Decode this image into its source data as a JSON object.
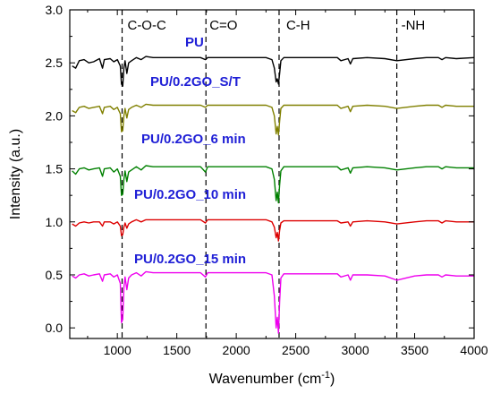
{
  "chart_data": {
    "type": "line",
    "xlabel": "Wavenumber (cm",
    "xlabel_sup": "-1",
    "xlabel_end": ")",
    "ylabel": "Intensity (a.u.)",
    "xlim": [
      600,
      4000
    ],
    "ylim": [
      -0.1,
      3.0
    ],
    "xticks": [
      "1000",
      "1500",
      "2000",
      "2500",
      "3000",
      "3500",
      "4000"
    ],
    "yticks": [
      "0.0",
      "0.5",
      "1.0",
      "1.5",
      "2.0",
      "2.5",
      "3.0"
    ],
    "reference_lines": [
      {
        "x": 1040,
        "label": "C-O-C"
      },
      {
        "x": 1745,
        "label": "C=O"
      },
      {
        "x": 2360,
        "label": "C-H"
      },
      {
        "x": 3350,
        "label": "-NH"
      }
    ],
    "series": [
      {
        "name": "PU",
        "color": "#000000",
        "points": [
          [
            620,
            2.47
          ],
          [
            650,
            2.45
          ],
          [
            680,
            2.52
          ],
          [
            720,
            2.53
          ],
          [
            760,
            2.5
          ],
          [
            800,
            2.51
          ],
          [
            850,
            2.54
          ],
          [
            875,
            2.45
          ],
          [
            890,
            2.53
          ],
          [
            940,
            2.54
          ],
          [
            970,
            2.51
          ],
          [
            1000,
            2.53
          ],
          [
            1025,
            2.47
          ],
          [
            1035,
            2.3
          ],
          [
            1045,
            2.28
          ],
          [
            1055,
            2.45
          ],
          [
            1065,
            2.52
          ],
          [
            1080,
            2.4
          ],
          [
            1095,
            2.5
          ],
          [
            1120,
            2.52
          ],
          [
            1160,
            2.55
          ],
          [
            1200,
            2.53
          ],
          [
            1240,
            2.56
          ],
          [
            1300,
            2.55
          ],
          [
            1400,
            2.55
          ],
          [
            1500,
            2.55
          ],
          [
            1600,
            2.55
          ],
          [
            1700,
            2.55
          ],
          [
            1740,
            2.53
          ],
          [
            1760,
            2.55
          ],
          [
            1900,
            2.55
          ],
          [
            2100,
            2.55
          ],
          [
            2250,
            2.55
          ],
          [
            2300,
            2.53
          ],
          [
            2320,
            2.45
          ],
          [
            2335,
            2.32
          ],
          [
            2345,
            2.35
          ],
          [
            2355,
            2.3
          ],
          [
            2365,
            2.4
          ],
          [
            2375,
            2.52
          ],
          [
            2400,
            2.55
          ],
          [
            2600,
            2.55
          ],
          [
            2850,
            2.55
          ],
          [
            2880,
            2.52
          ],
          [
            2940,
            2.54
          ],
          [
            2960,
            2.49
          ],
          [
            2980,
            2.54
          ],
          [
            3100,
            2.55
          ],
          [
            3250,
            2.54
          ],
          [
            3350,
            2.52
          ],
          [
            3500,
            2.54
          ],
          [
            3600,
            2.55
          ],
          [
            3700,
            2.55
          ],
          [
            3730,
            2.53
          ],
          [
            3760,
            2.55
          ],
          [
            3850,
            2.54
          ],
          [
            4000,
            2.55
          ]
        ]
      },
      {
        "name": "PU/0.2GO_S/T",
        "color": "#808000",
        "points": [
          [
            620,
            2.05
          ],
          [
            650,
            2.03
          ],
          [
            680,
            2.08
          ],
          [
            720,
            2.09
          ],
          [
            760,
            2.07
          ],
          [
            800,
            2.08
          ],
          [
            850,
            2.09
          ],
          [
            875,
            2.02
          ],
          [
            890,
            2.08
          ],
          [
            940,
            2.09
          ],
          [
            970,
            2.06
          ],
          [
            1000,
            2.08
          ],
          [
            1025,
            2.02
          ],
          [
            1035,
            1.85
          ],
          [
            1045,
            1.86
          ],
          [
            1055,
            2.0
          ],
          [
            1065,
            2.07
          ],
          [
            1080,
            1.98
          ],
          [
            1095,
            2.06
          ],
          [
            1120,
            2.08
          ],
          [
            1160,
            2.1
          ],
          [
            1200,
            2.08
          ],
          [
            1240,
            2.11
          ],
          [
            1300,
            2.1
          ],
          [
            1400,
            2.1
          ],
          [
            1500,
            2.1
          ],
          [
            1600,
            2.1
          ],
          [
            1700,
            2.1
          ],
          [
            1740,
            2.08
          ],
          [
            1760,
            2.1
          ],
          [
            1900,
            2.1
          ],
          [
            2100,
            2.1
          ],
          [
            2250,
            2.1
          ],
          [
            2300,
            2.08
          ],
          [
            2320,
            2.0
          ],
          [
            2335,
            1.83
          ],
          [
            2345,
            1.9
          ],
          [
            2355,
            1.82
          ],
          [
            2365,
            1.95
          ],
          [
            2375,
            2.07
          ],
          [
            2400,
            2.1
          ],
          [
            2600,
            2.1
          ],
          [
            2850,
            2.1
          ],
          [
            2880,
            2.07
          ],
          [
            2940,
            2.09
          ],
          [
            2960,
            2.04
          ],
          [
            2980,
            2.09
          ],
          [
            3100,
            2.1
          ],
          [
            3250,
            2.09
          ],
          [
            3350,
            2.07
          ],
          [
            3500,
            2.09
          ],
          [
            3600,
            2.1
          ],
          [
            3700,
            2.1
          ],
          [
            3730,
            2.08
          ],
          [
            3760,
            2.1
          ],
          [
            3850,
            2.09
          ],
          [
            4000,
            2.09
          ]
        ]
      },
      {
        "name": "PU/0.2GO_6 min",
        "color": "#008000",
        "points": [
          [
            620,
            1.48
          ],
          [
            650,
            1.45
          ],
          [
            680,
            1.5
          ],
          [
            720,
            1.51
          ],
          [
            760,
            1.49
          ],
          [
            800,
            1.5
          ],
          [
            850,
            1.51
          ],
          [
            875,
            1.43
          ],
          [
            890,
            1.5
          ],
          [
            940,
            1.51
          ],
          [
            970,
            1.47
          ],
          [
            1000,
            1.5
          ],
          [
            1025,
            1.43
          ],
          [
            1035,
            1.25
          ],
          [
            1045,
            1.26
          ],
          [
            1055,
            1.4
          ],
          [
            1065,
            1.48
          ],
          [
            1080,
            1.38
          ],
          [
            1095,
            1.47
          ],
          [
            1120,
            1.49
          ],
          [
            1160,
            1.52
          ],
          [
            1200,
            1.49
          ],
          [
            1240,
            1.53
          ],
          [
            1300,
            1.52
          ],
          [
            1400,
            1.52
          ],
          [
            1500,
            1.52
          ],
          [
            1600,
            1.52
          ],
          [
            1700,
            1.52
          ],
          [
            1740,
            1.47
          ],
          [
            1760,
            1.52
          ],
          [
            1900,
            1.52
          ],
          [
            2100,
            1.52
          ],
          [
            2250,
            1.52
          ],
          [
            2300,
            1.5
          ],
          [
            2320,
            1.4
          ],
          [
            2335,
            1.2
          ],
          [
            2345,
            1.28
          ],
          [
            2355,
            1.18
          ],
          [
            2365,
            1.35
          ],
          [
            2375,
            1.48
          ],
          [
            2400,
            1.52
          ],
          [
            2600,
            1.52
          ],
          [
            2850,
            1.52
          ],
          [
            2880,
            1.49
          ],
          [
            2940,
            1.51
          ],
          [
            2960,
            1.46
          ],
          [
            2980,
            1.51
          ],
          [
            3100,
            1.52
          ],
          [
            3250,
            1.51
          ],
          [
            3350,
            1.49
          ],
          [
            3500,
            1.51
          ],
          [
            3600,
            1.52
          ],
          [
            3700,
            1.52
          ],
          [
            3730,
            1.5
          ],
          [
            3760,
            1.52
          ],
          [
            3850,
            1.51
          ],
          [
            4000,
            1.51
          ]
        ]
      },
      {
        "name": "PU/0.2GO_10 min",
        "color": "#dd0000",
        "points": [
          [
            620,
            0.98
          ],
          [
            650,
            0.96
          ],
          [
            680,
            0.99
          ],
          [
            720,
            1.0
          ],
          [
            760,
            0.99
          ],
          [
            800,
            1.0
          ],
          [
            850,
            1.0
          ],
          [
            875,
            0.96
          ],
          [
            890,
            1.0
          ],
          [
            940,
            1.0
          ],
          [
            970,
            0.98
          ],
          [
            1000,
            1.0
          ],
          [
            1025,
            0.96
          ],
          [
            1035,
            0.87
          ],
          [
            1045,
            0.88
          ],
          [
            1055,
            0.95
          ],
          [
            1065,
            0.99
          ],
          [
            1080,
            0.94
          ],
          [
            1095,
            0.98
          ],
          [
            1120,
            1.0
          ],
          [
            1160,
            1.02
          ],
          [
            1200,
            1.0
          ],
          [
            1240,
            1.02
          ],
          [
            1300,
            1.02
          ],
          [
            1400,
            1.02
          ],
          [
            1500,
            1.02
          ],
          [
            1600,
            1.02
          ],
          [
            1700,
            1.02
          ],
          [
            1740,
            0.99
          ],
          [
            1760,
            1.02
          ],
          [
            1900,
            1.02
          ],
          [
            2100,
            1.02
          ],
          [
            2250,
            1.02
          ],
          [
            2300,
            1.0
          ],
          [
            2320,
            0.95
          ],
          [
            2335,
            0.85
          ],
          [
            2345,
            0.9
          ],
          [
            2355,
            0.82
          ],
          [
            2365,
            0.92
          ],
          [
            2375,
            0.99
          ],
          [
            2400,
            1.01
          ],
          [
            2600,
            1.01
          ],
          [
            2850,
            1.01
          ],
          [
            2880,
            0.99
          ],
          [
            2940,
            1.0
          ],
          [
            2960,
            0.96
          ],
          [
            2980,
            1.0
          ],
          [
            3100,
            1.01
          ],
          [
            3250,
            1.0
          ],
          [
            3350,
            0.98
          ],
          [
            3500,
            1.0
          ],
          [
            3600,
            1.01
          ],
          [
            3700,
            1.01
          ],
          [
            3730,
            0.99
          ],
          [
            3760,
            1.01
          ],
          [
            3850,
            1.0
          ],
          [
            4000,
            1.0
          ]
        ]
      },
      {
        "name": "PU/0.2GO_15 min",
        "color": "#ee00ee",
        "points": [
          [
            620,
            0.49
          ],
          [
            650,
            0.47
          ],
          [
            680,
            0.5
          ],
          [
            720,
            0.51
          ],
          [
            760,
            0.49
          ],
          [
            800,
            0.5
          ],
          [
            850,
            0.51
          ],
          [
            875,
            0.44
          ],
          [
            890,
            0.5
          ],
          [
            940,
            0.51
          ],
          [
            970,
            0.48
          ],
          [
            1000,
            0.5
          ],
          [
            1025,
            0.42
          ],
          [
            1035,
            0.05
          ],
          [
            1045,
            0.08
          ],
          [
            1055,
            0.38
          ],
          [
            1065,
            0.48
          ],
          [
            1080,
            0.36
          ],
          [
            1095,
            0.47
          ],
          [
            1120,
            0.5
          ],
          [
            1160,
            0.52
          ],
          [
            1200,
            0.49
          ],
          [
            1240,
            0.53
          ],
          [
            1300,
            0.52
          ],
          [
            1400,
            0.52
          ],
          [
            1500,
            0.52
          ],
          [
            1600,
            0.52
          ],
          [
            1700,
            0.52
          ],
          [
            1740,
            0.48
          ],
          [
            1760,
            0.52
          ],
          [
            1900,
            0.52
          ],
          [
            2100,
            0.52
          ],
          [
            2250,
            0.52
          ],
          [
            2300,
            0.5
          ],
          [
            2320,
            0.3
          ],
          [
            2335,
            0.0
          ],
          [
            2345,
            0.1
          ],
          [
            2355,
            -0.05
          ],
          [
            2365,
            0.25
          ],
          [
            2375,
            0.47
          ],
          [
            2400,
            0.51
          ],
          [
            2600,
            0.51
          ],
          [
            2850,
            0.51
          ],
          [
            2880,
            0.48
          ],
          [
            2940,
            0.5
          ],
          [
            2960,
            0.45
          ],
          [
            2980,
            0.5
          ],
          [
            3100,
            0.5
          ],
          [
            3250,
            0.49
          ],
          [
            3350,
            0.45
          ],
          [
            3500,
            0.49
          ],
          [
            3600,
            0.5
          ],
          [
            3700,
            0.5
          ],
          [
            3730,
            0.48
          ],
          [
            3760,
            0.5
          ],
          [
            3850,
            0.49
          ],
          [
            4000,
            0.49
          ]
        ]
      }
    ]
  }
}
